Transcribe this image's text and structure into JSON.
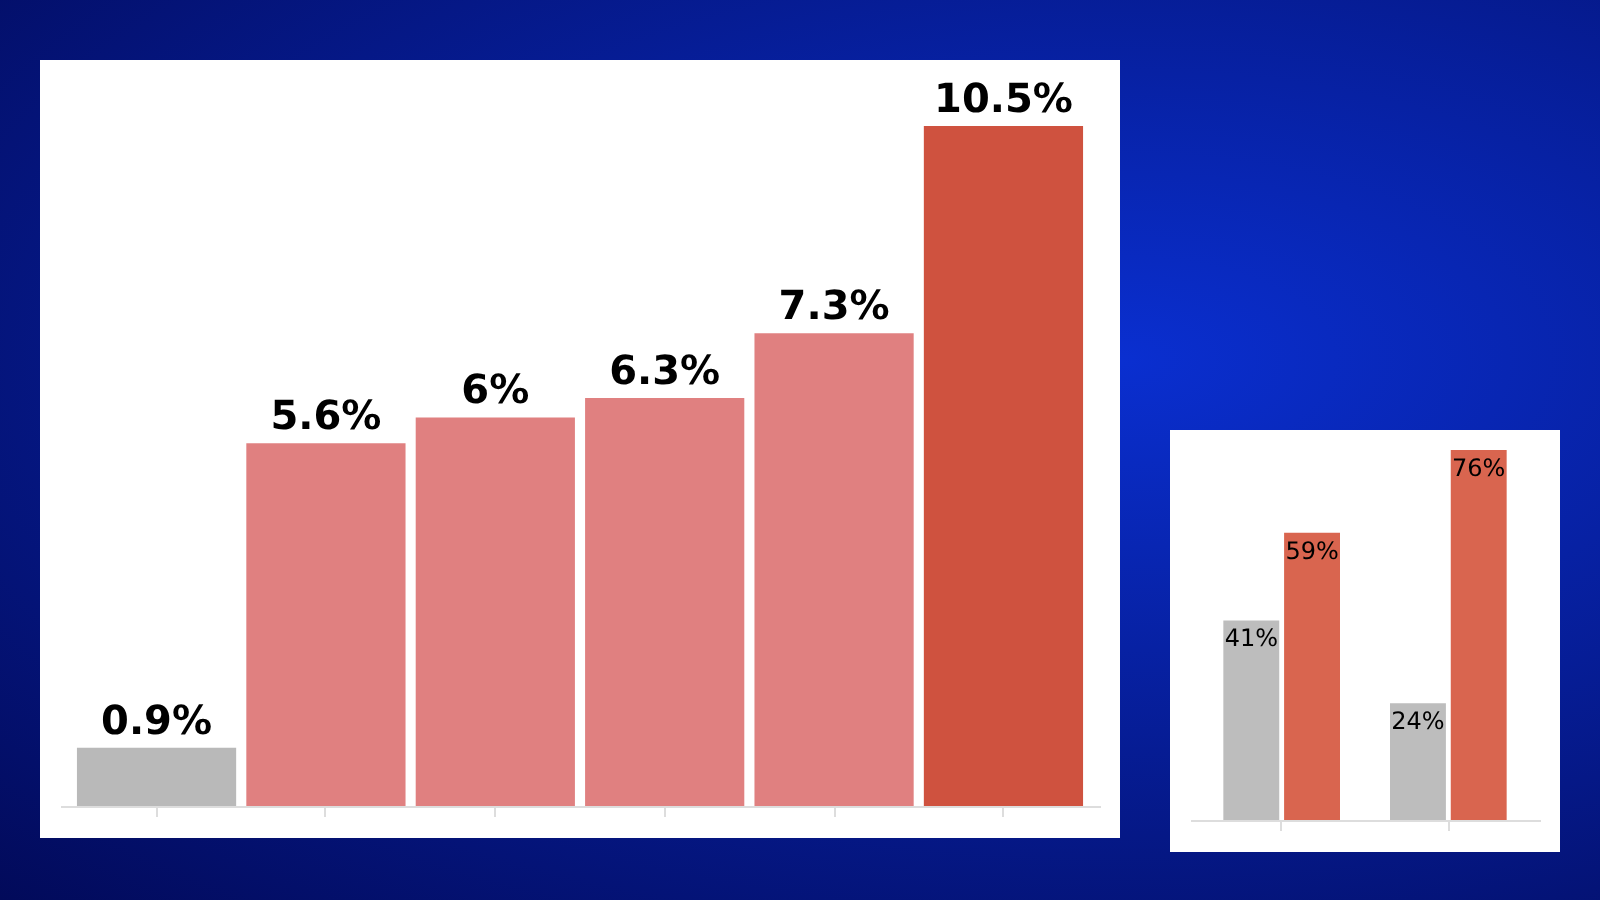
{
  "chart_data": [
    {
      "type": "bar",
      "categories": [
        null,
        null,
        null,
        null,
        null,
        null
      ],
      "values": [
        0.9,
        5.6,
        6,
        6.3,
        7.3,
        10.5
      ],
      "colors": [
        "#b9b9b9",
        "#e08080",
        "#e08080",
        "#e08080",
        "#e08080",
        "#cf523f"
      ],
      "value_labels": [
        "0.9%",
        "5.6%",
        "6%",
        "6.3%",
        "7.3%",
        "10.5%"
      ],
      "tick_labels": false
    },
    {
      "type": "bar",
      "categories": [
        null,
        null
      ],
      "tick_labels": false,
      "series": [
        {
          "color": "#bdbdbd",
          "values": [
            41,
            24
          ],
          "value_labels": [
            "41%",
            "24%"
          ]
        },
        {
          "color": "#d9654f",
          "values": [
            59,
            76
          ],
          "value_labels": [
            "59%",
            "76%"
          ]
        }
      ]
    }
  ]
}
